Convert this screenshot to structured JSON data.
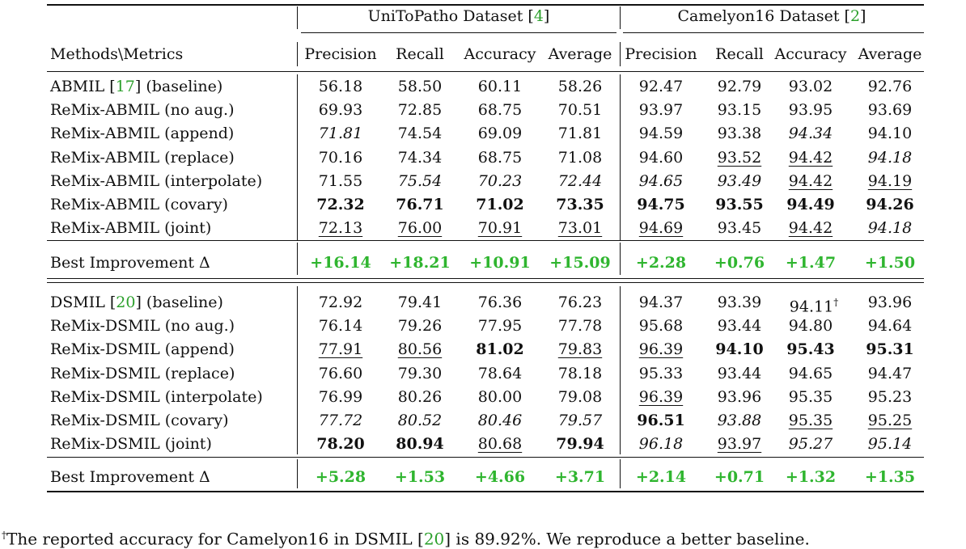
{
  "table": {
    "groups": [
      "UniToPatho Dataset [4]",
      "Camelyon16 Dataset [2]"
    ],
    "corner": "Methods\\Metrics",
    "columns": [
      "Precision",
      "Recall",
      "Accuracy",
      "Average",
      "Precision",
      "Recall",
      "Accuracy",
      "Average"
    ],
    "blocks": [
      {
        "rows": [
          {
            "method": "ABMIL [17] (baseline)",
            "cells": [
              "56.18",
              "58.50",
              "60.11",
              "58.26",
              "92.47",
              "92.79",
              "93.02",
              "92.76"
            ],
            "styles": [
              null,
              null,
              null,
              null,
              null,
              null,
              null,
              null
            ]
          },
          {
            "method": "ReMix-ABMIL (no aug.)",
            "cells": [
              "69.93",
              "72.85",
              "68.75",
              "70.51",
              "93.97",
              "93.15",
              "93.95",
              "93.69"
            ],
            "styles": [
              null,
              null,
              null,
              null,
              null,
              null,
              null,
              null
            ]
          },
          {
            "method": "ReMix-ABMIL (append)",
            "cells": [
              "71.81",
              "74.54",
              "69.09",
              "71.81",
              "94.59",
              "93.38",
              "94.34",
              "94.10"
            ],
            "styles": [
              "i",
              null,
              null,
              null,
              null,
              null,
              "i",
              null
            ]
          },
          {
            "method": "ReMix-ABMIL (replace)",
            "cells": [
              "70.16",
              "74.34",
              "68.75",
              "71.08",
              "94.60",
              "93.52",
              "94.42",
              "94.18"
            ],
            "styles": [
              null,
              null,
              null,
              null,
              null,
              "u",
              "u",
              "i"
            ]
          },
          {
            "method": "ReMix-ABMIL (interpolate)",
            "cells": [
              "71.55",
              "75.54",
              "70.23",
              "72.44",
              "94.65",
              "93.49",
              "94.42",
              "94.19"
            ],
            "styles": [
              null,
              "i",
              "i",
              "i",
              "i",
              "i",
              "u",
              "u"
            ]
          },
          {
            "method": "ReMix-ABMIL (covary)",
            "cells": [
              "72.32",
              "76.71",
              "71.02",
              "73.35",
              "94.75",
              "93.55",
              "94.49",
              "94.26"
            ],
            "styles": [
              "b",
              "b",
              "b",
              "b",
              "b",
              "b",
              "b",
              "b"
            ]
          },
          {
            "method": "ReMix-ABMIL (joint)",
            "cells": [
              "72.13",
              "76.00",
              "70.91",
              "73.01",
              "94.69",
              "93.45",
              "94.42",
              "94.18"
            ],
            "styles": [
              "u",
              "u",
              "u",
              "u",
              "u",
              null,
              "u",
              "i"
            ]
          }
        ],
        "improvement": {
          "label": "Best Improvement Δ",
          "cells": [
            "+16.14",
            "+18.21",
            "+10.91",
            "+15.09",
            "+2.28",
            "+0.76",
            "+1.47",
            "+1.50"
          ]
        }
      },
      {
        "rows": [
          {
            "method": "DSMIL [20] (baseline)",
            "cells": [
              "72.92",
              "79.41",
              "76.36",
              "76.23",
              "94.37",
              "93.39",
              {
                "text": "94.11",
                "sup": "†"
              },
              "93.96"
            ],
            "styles": [
              null,
              null,
              null,
              null,
              null,
              null,
              null,
              null
            ]
          },
          {
            "method": "ReMix-DSMIL (no aug.)",
            "cells": [
              "76.14",
              "79.26",
              "77.95",
              "77.78",
              "95.68",
              "93.44",
              "94.80",
              "94.64"
            ],
            "styles": [
              null,
              null,
              null,
              null,
              null,
              null,
              null,
              null
            ]
          },
          {
            "method": "ReMix-DSMIL (append)",
            "cells": [
              "77.91",
              "80.56",
              "81.02",
              "79.83",
              "96.39",
              "94.10",
              "95.43",
              "95.31"
            ],
            "styles": [
              "u",
              "u",
              "b",
              "u",
              "u",
              "b",
              "b",
              "b"
            ]
          },
          {
            "method": "ReMix-DSMIL (replace)",
            "cells": [
              "76.60",
              "79.30",
              "78.64",
              "78.18",
              "95.33",
              "93.44",
              "94.65",
              "94.47"
            ],
            "styles": [
              null,
              null,
              null,
              null,
              null,
              null,
              null,
              null
            ]
          },
          {
            "method": "ReMix-DSMIL (interpolate)",
            "cells": [
              "76.99",
              "80.26",
              "80.00",
              "79.08",
              "96.39",
              "93.96",
              "95.35",
              "95.23"
            ],
            "styles": [
              null,
              null,
              null,
              null,
              "u",
              null,
              null,
              null
            ]
          },
          {
            "method": "ReMix-DSMIL (covary)",
            "cells": [
              "77.72",
              "80.52",
              "80.46",
              "79.57",
              "96.51",
              "93.88",
              "95.35",
              "95.25"
            ],
            "styles": [
              "i",
              "i",
              "i",
              "i",
              "b",
              "i",
              "u",
              "u"
            ]
          },
          {
            "method": "ReMix-DSMIL (joint)",
            "cells": [
              "78.20",
              "80.94",
              "80.68",
              "79.94",
              "96.18",
              "93.97",
              "95.27",
              "95.14"
            ],
            "styles": [
              "b",
              "b",
              "u",
              "b",
              "i",
              "u",
              "i",
              "i"
            ]
          }
        ],
        "improvement": {
          "label": "Best Improvement Δ",
          "cells": [
            "+5.28",
            "+1.53",
            "+4.66",
            "+3.71",
            "+2.14",
            "+0.71",
            "+1.32",
            "+1.35"
          ]
        }
      }
    ],
    "footnote": {
      "mark": "†",
      "text": "The reported accuracy for Camelyon16 in DSMIL [20] is 89.92%. We reproduce a better baseline."
    }
  }
}
